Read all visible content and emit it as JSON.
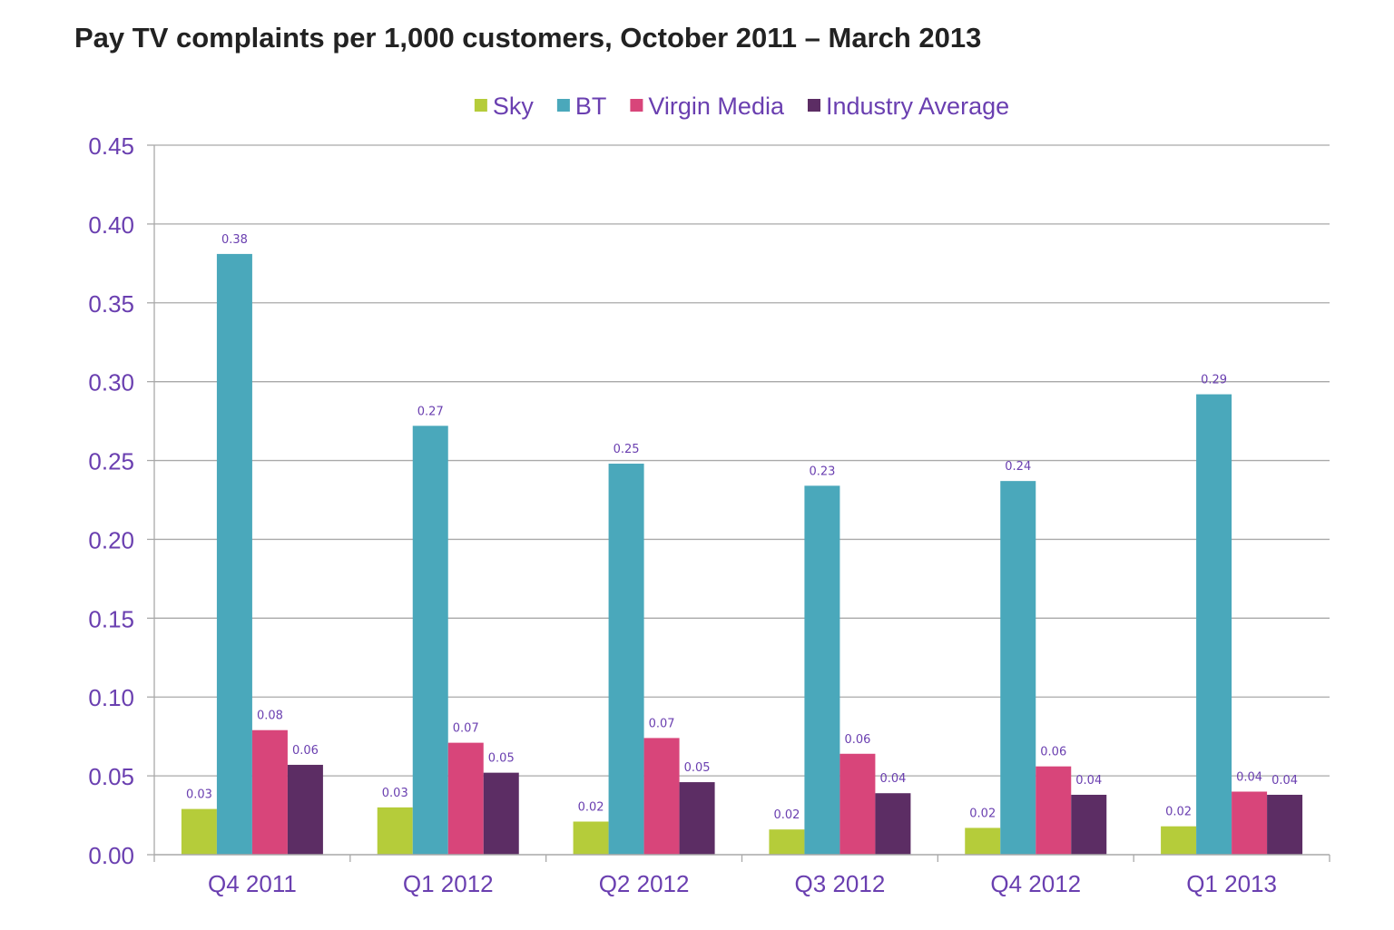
{
  "chart_data": {
    "type": "bar",
    "title": "Pay TV complaints per 1,000 customers, October 2011 – March 2013",
    "xlabel": "",
    "ylabel": "",
    "ylim": [
      0,
      0.45
    ],
    "yticks": [
      "0.00",
      "0.05",
      "0.10",
      "0.15",
      "0.20",
      "0.25",
      "0.30",
      "0.35",
      "0.40",
      "0.45"
    ],
    "grid": true,
    "legend_position": "top-center",
    "categories": [
      "Q4 2011",
      "Q1 2012",
      "Q2 2012",
      "Q3 2012",
      "Q4 2012",
      "Q1 2013"
    ],
    "series": [
      {
        "name": "Sky",
        "color": "#b5cc3a",
        "values": [
          0.029,
          0.03,
          0.021,
          0.016,
          0.017,
          0.018
        ],
        "labels": [
          "0.03",
          "0.03",
          "0.02",
          "0.02",
          "0.02",
          "0.02"
        ]
      },
      {
        "name": "BT",
        "color": "#4aa8bb",
        "values": [
          0.381,
          0.272,
          0.248,
          0.234,
          0.237,
          0.292
        ],
        "labels": [
          "0.38",
          "0.27",
          "0.25",
          "0.23",
          "0.24",
          "0.29"
        ]
      },
      {
        "name": "Virgin Media",
        "color": "#d8457a",
        "values": [
          0.079,
          0.071,
          0.074,
          0.064,
          0.056,
          0.04
        ],
        "labels": [
          "0.08",
          "0.07",
          "0.07",
          "0.06",
          "0.06",
          "0.04"
        ]
      },
      {
        "name": "Industry Average",
        "color": "#5c2d64",
        "values": [
          0.057,
          0.052,
          0.046,
          0.039,
          0.038,
          0.038
        ],
        "labels": [
          "0.06",
          "0.05",
          "0.05",
          "0.04",
          "0.04",
          "0.04"
        ]
      }
    ]
  },
  "colors": {
    "text_accent": "#6a3fb0",
    "title": "#222222",
    "gridline": "#a9a9a9",
    "axis": "#a9a9a9"
  }
}
